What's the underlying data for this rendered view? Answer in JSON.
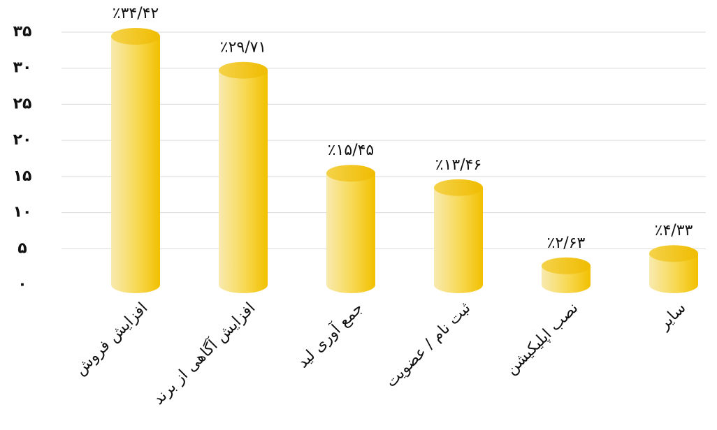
{
  "chart_data": {
    "type": "bar",
    "categories": [
      "افزایش فروش",
      "افزایش آگاهی از برند",
      "جمع آوری لید",
      "ثبت نام / عضویت",
      "نصب اپلیکیشن",
      "سایر"
    ],
    "values": [
      34.42,
      29.71,
      15.45,
      13.46,
      2.63,
      4.33
    ],
    "value_labels": [
      "٪۳۴/۴۲",
      "٪۲۹/۷۱",
      "٪۱۵/۴۵",
      "٪۱۳/۴۶",
      "٪۲/۶۳",
      "٪۴/۳۳"
    ],
    "color": "#f5c400",
    "ylim": [
      0,
      35
    ],
    "yticks": [
      {
        "value": 0,
        "label": "۰"
      },
      {
        "value": 5,
        "label": "۵"
      },
      {
        "value": 10,
        "label": "۱۰"
      },
      {
        "value": 15,
        "label": "۱۵"
      },
      {
        "value": 20,
        "label": "۲۰"
      },
      {
        "value": 25,
        "label": "۲۵"
      },
      {
        "value": 30,
        "label": "۳۰"
      },
      {
        "value": 35,
        "label": "۳۵"
      }
    ],
    "grid": true
  }
}
